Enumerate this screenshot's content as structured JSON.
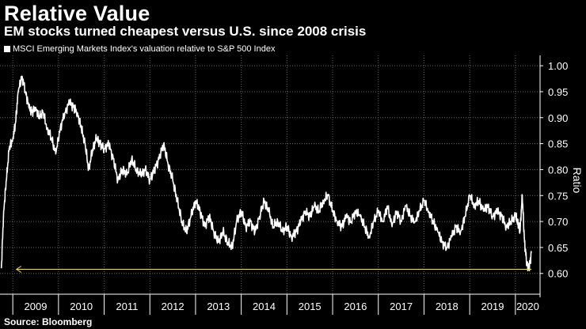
{
  "header": {
    "title": "Relative Value",
    "subtitle": "EM stocks turned cheapest versus U.S. since 2008 crisis"
  },
  "footer": {
    "source": "Source: Bloomberg"
  },
  "colors": {
    "background": "#000000",
    "series": "#ffffff",
    "annotation": "#e8e060",
    "grid": "#666666"
  },
  "chart_data": {
    "type": "line",
    "title": "Relative Value",
    "subtitle": "EM stocks turned cheapest versus U.S. since 2008 crisis",
    "ylabel": "Ratio",
    "xlabel": "",
    "ylim": [
      0.56,
      1.02
    ],
    "xlim": [
      2008.72,
      2020.54
    ],
    "yticks": [
      0.6,
      0.65,
      0.7,
      0.75,
      0.8,
      0.85,
      0.9,
      0.95,
      1.0
    ],
    "ytick_labels": [
      "0.60",
      "0.65",
      "0.70",
      "0.75",
      "0.80",
      "0.85",
      "0.90",
      "0.95",
      "1.00"
    ],
    "xtick_labels": [
      "2009",
      "2010",
      "2011",
      "2012",
      "2013",
      "2014",
      "2015",
      "2016",
      "2017",
      "2018",
      "2019",
      "2020"
    ],
    "xtick_centers": [
      2009.5,
      2010.5,
      2011.5,
      2012.5,
      2013.5,
      2014.5,
      2015.5,
      2016.5,
      2017.5,
      2018.5,
      2019.5,
      2020.27
    ],
    "grid": true,
    "legend": "top-left",
    "series": [
      {
        "name": "MSCI Emerging Markets Index's valuation relative to S&P 500 Index",
        "x": [
          2008.75,
          2008.8,
          2008.86,
          2008.92,
          2009.0,
          2009.06,
          2009.12,
          2009.2,
          2009.28,
          2009.35,
          2009.42,
          2009.5,
          2009.58,
          2009.66,
          2009.75,
          2009.85,
          2009.94,
          2010.04,
          2010.14,
          2010.24,
          2010.33,
          2010.41,
          2010.5,
          2010.58,
          2010.66,
          2010.75,
          2010.83,
          2010.91,
          2011.0,
          2011.1,
          2011.2,
          2011.3,
          2011.4,
          2011.5,
          2011.6,
          2011.7,
          2011.8,
          2011.9,
          2012.0,
          2012.1,
          2012.2,
          2012.3,
          2012.4,
          2012.5,
          2012.6,
          2012.7,
          2012.8,
          2012.9,
          2013.0,
          2013.1,
          2013.2,
          2013.3,
          2013.4,
          2013.5,
          2013.6,
          2013.7,
          2013.8,
          2013.9,
          2014.0,
          2014.1,
          2014.2,
          2014.3,
          2014.4,
          2014.5,
          2014.6,
          2014.7,
          2014.8,
          2014.9,
          2015.0,
          2015.1,
          2015.2,
          2015.3,
          2015.4,
          2015.5,
          2015.6,
          2015.7,
          2015.8,
          2015.9,
          2016.0,
          2016.1,
          2016.2,
          2016.3,
          2016.4,
          2016.5,
          2016.6,
          2016.7,
          2016.8,
          2016.9,
          2017.0,
          2017.1,
          2017.2,
          2017.3,
          2017.4,
          2017.5,
          2017.6,
          2017.7,
          2017.8,
          2017.9,
          2018.0,
          2018.1,
          2018.2,
          2018.3,
          2018.4,
          2018.5,
          2018.6,
          2018.7,
          2018.8,
          2018.9,
          2019.0,
          2019.1,
          2019.2,
          2019.3,
          2019.4,
          2019.5,
          2019.6,
          2019.7,
          2019.8,
          2019.9,
          2020.0,
          2020.05,
          2020.1,
          2020.15,
          2020.2,
          2020.25,
          2020.3,
          2020.35
        ],
        "values": [
          0.61,
          0.72,
          0.78,
          0.84,
          0.86,
          0.89,
          0.95,
          0.98,
          0.95,
          0.92,
          0.91,
          0.92,
          0.9,
          0.91,
          0.88,
          0.86,
          0.83,
          0.88,
          0.91,
          0.93,
          0.92,
          0.91,
          0.88,
          0.85,
          0.8,
          0.84,
          0.86,
          0.85,
          0.84,
          0.85,
          0.82,
          0.78,
          0.8,
          0.79,
          0.82,
          0.8,
          0.79,
          0.8,
          0.78,
          0.8,
          0.82,
          0.85,
          0.81,
          0.78,
          0.74,
          0.7,
          0.68,
          0.71,
          0.74,
          0.72,
          0.69,
          0.71,
          0.68,
          0.66,
          0.68,
          0.66,
          0.65,
          0.7,
          0.72,
          0.69,
          0.7,
          0.68,
          0.71,
          0.74,
          0.72,
          0.69,
          0.7,
          0.68,
          0.69,
          0.67,
          0.68,
          0.7,
          0.72,
          0.71,
          0.73,
          0.72,
          0.74,
          0.75,
          0.72,
          0.7,
          0.69,
          0.71,
          0.7,
          0.72,
          0.71,
          0.69,
          0.67,
          0.7,
          0.72,
          0.7,
          0.73,
          0.69,
          0.72,
          0.7,
          0.73,
          0.71,
          0.7,
          0.72,
          0.74,
          0.72,
          0.7,
          0.68,
          0.66,
          0.65,
          0.67,
          0.69,
          0.68,
          0.71,
          0.75,
          0.73,
          0.74,
          0.72,
          0.73,
          0.71,
          0.72,
          0.71,
          0.69,
          0.7,
          0.71,
          0.7,
          0.68,
          0.75,
          0.66,
          0.62,
          0.61,
          0.64
        ]
      }
    ],
    "annotations": [
      {
        "type": "arrow",
        "x_from": 2020.35,
        "x_to": 2009.08,
        "y": 0.608,
        "label": ""
      }
    ]
  }
}
